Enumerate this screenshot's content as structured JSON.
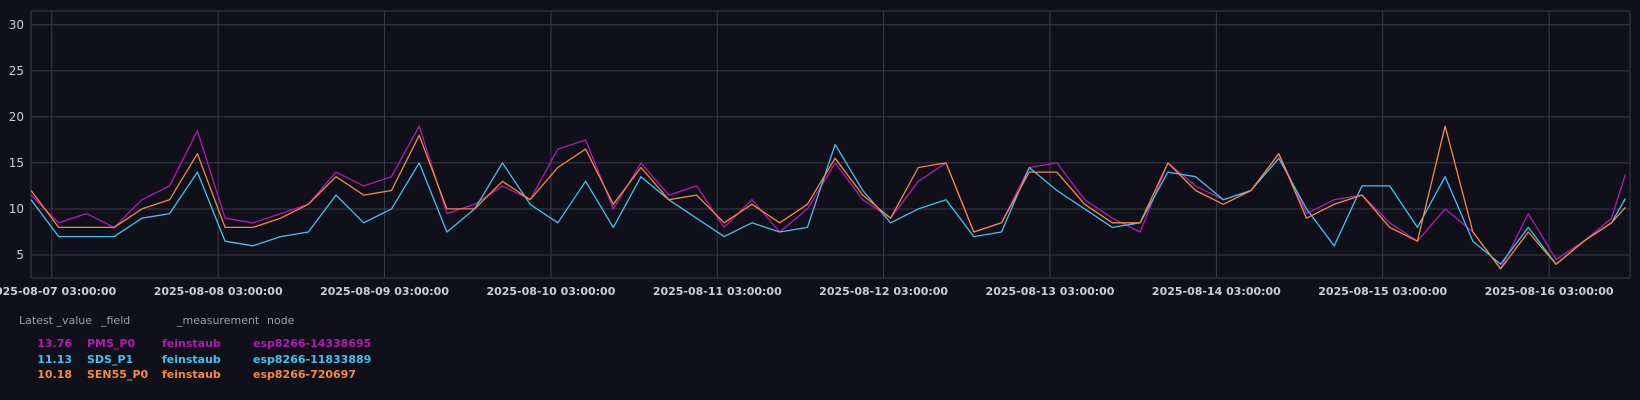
{
  "chart_data": {
    "type": "line",
    "ylim": [
      2.5,
      31.5
    ],
    "yticks": [
      5,
      10,
      15,
      20,
      25,
      30
    ],
    "grid": true,
    "x_start": "2025-08-07 00:00:00",
    "x_end": "2025-08-16 14:40:00",
    "xticks": [
      "2025-08-07 03:00:00",
      "2025-08-08 03:00:00",
      "2025-08-09 03:00:00",
      "2025-08-10 03:00:00",
      "2025-08-11 03:00:00",
      "2025-08-12 03:00:00",
      "2025-08-13 03:00:00",
      "2025-08-14 03:00:00",
      "2025-08-15 03:00:00",
      "2025-08-16 03:00:00"
    ],
    "series": [
      {
        "name": "PMS_P0",
        "color": "#b418b5",
        "x": [
          "2025-08-07 00:00:00",
          "2025-08-07 04:00:00",
          "2025-08-07 08:00:00",
          "2025-08-07 12:00:00",
          "2025-08-07 16:00:00",
          "2025-08-07 20:00:00",
          "2025-08-08 00:00:00",
          "2025-08-08 04:00:00",
          "2025-08-08 08:00:00",
          "2025-08-08 12:00:00",
          "2025-08-08 16:00:00",
          "2025-08-08 20:00:00",
          "2025-08-09 00:00:00",
          "2025-08-09 04:00:00",
          "2025-08-09 08:00:00",
          "2025-08-09 12:00:00",
          "2025-08-09 16:00:00",
          "2025-08-09 20:00:00",
          "2025-08-10 00:00:00",
          "2025-08-10 04:00:00",
          "2025-08-10 08:00:00",
          "2025-08-10 12:00:00",
          "2025-08-10 16:00:00",
          "2025-08-10 20:00:00",
          "2025-08-11 00:00:00",
          "2025-08-11 04:00:00",
          "2025-08-11 08:00:00",
          "2025-08-11 12:00:00",
          "2025-08-11 16:00:00",
          "2025-08-11 20:00:00",
          "2025-08-12 00:00:00",
          "2025-08-12 04:00:00",
          "2025-08-12 08:00:00",
          "2025-08-12 12:00:00",
          "2025-08-12 16:00:00",
          "2025-08-12 20:00:00",
          "2025-08-13 00:00:00",
          "2025-08-13 04:00:00",
          "2025-08-13 08:00:00",
          "2025-08-13 12:00:00",
          "2025-08-13 16:00:00",
          "2025-08-13 20:00:00",
          "2025-08-14 00:00:00",
          "2025-08-14 04:00:00",
          "2025-08-14 08:00:00",
          "2025-08-14 12:00:00",
          "2025-08-14 16:00:00",
          "2025-08-14 20:00:00",
          "2025-08-15 00:00:00",
          "2025-08-15 04:00:00",
          "2025-08-15 08:00:00",
          "2025-08-15 12:00:00",
          "2025-08-15 16:00:00",
          "2025-08-15 20:00:00",
          "2025-08-16 00:00:00",
          "2025-08-16 04:00:00",
          "2025-08-16 08:00:00",
          "2025-08-16 12:00:00",
          "2025-08-16 14:00:00"
        ],
        "values": [
          11.5,
          8.5,
          9.5,
          8.0,
          11.0,
          12.5,
          18.5,
          9.0,
          8.5,
          9.5,
          10.5,
          14.0,
          12.5,
          13.5,
          19.0,
          9.5,
          10.5,
          12.5,
          11.0,
          16.5,
          17.5,
          10.0,
          15.0,
          11.5,
          12.5,
          8.0,
          11.0,
          7.5,
          10.0,
          15.0,
          11.0,
          9.0,
          13.0,
          15.0,
          7.5,
          8.5,
          14.5,
          15.0,
          11.0,
          9.0,
          7.5,
          15.0,
          12.5,
          11.0,
          12.0,
          16.0,
          9.5,
          11.0,
          11.5,
          8.5,
          6.5,
          10.0,
          7.5,
          3.5,
          9.5,
          4.5,
          6.5,
          9.0,
          13.76
        ]
      },
      {
        "name": "SDS_P1",
        "color": "#3fc3f0",
        "x": [
          "2025-08-07 00:00:00",
          "2025-08-07 04:00:00",
          "2025-08-07 08:00:00",
          "2025-08-07 12:00:00",
          "2025-08-07 16:00:00",
          "2025-08-07 20:00:00",
          "2025-08-08 00:00:00",
          "2025-08-08 04:00:00",
          "2025-08-08 08:00:00",
          "2025-08-08 12:00:00",
          "2025-08-08 16:00:00",
          "2025-08-08 20:00:00",
          "2025-08-09 00:00:00",
          "2025-08-09 04:00:00",
          "2025-08-09 08:00:00",
          "2025-08-09 12:00:00",
          "2025-08-09 16:00:00",
          "2025-08-09 20:00:00",
          "2025-08-10 00:00:00",
          "2025-08-10 04:00:00",
          "2025-08-10 08:00:00",
          "2025-08-10 12:00:00",
          "2025-08-10 16:00:00",
          "2025-08-10 20:00:00",
          "2025-08-11 00:00:00",
          "2025-08-11 04:00:00",
          "2025-08-11 08:00:00",
          "2025-08-11 12:00:00",
          "2025-08-11 16:00:00",
          "2025-08-11 20:00:00",
          "2025-08-12 00:00:00",
          "2025-08-12 04:00:00",
          "2025-08-12 08:00:00",
          "2025-08-12 12:00:00",
          "2025-08-12 16:00:00",
          "2025-08-12 20:00:00",
          "2025-08-13 00:00:00",
          "2025-08-13 04:00:00",
          "2025-08-13 08:00:00",
          "2025-08-13 12:00:00",
          "2025-08-13 16:00:00",
          "2025-08-13 20:00:00",
          "2025-08-14 00:00:00",
          "2025-08-14 04:00:00",
          "2025-08-14 08:00:00",
          "2025-08-14 12:00:00",
          "2025-08-14 16:00:00",
          "2025-08-14 20:00:00",
          "2025-08-15 00:00:00",
          "2025-08-15 04:00:00",
          "2025-08-15 08:00:00",
          "2025-08-15 12:00:00",
          "2025-08-15 16:00:00",
          "2025-08-15 20:00:00",
          "2025-08-16 00:00:00",
          "2025-08-16 04:00:00",
          "2025-08-16 08:00:00",
          "2025-08-16 12:00:00",
          "2025-08-16 14:00:00"
        ],
        "values": [
          11.0,
          7.0,
          7.0,
          7.0,
          9.0,
          9.5,
          14.0,
          6.5,
          6.0,
          7.0,
          7.5,
          11.5,
          8.5,
          10.0,
          15.0,
          7.5,
          10.0,
          15.0,
          10.5,
          8.5,
          13.0,
          8.0,
          13.5,
          11.0,
          9.0,
          7.0,
          8.5,
          7.5,
          8.0,
          17.0,
          12.0,
          8.5,
          10.0,
          11.0,
          7.0,
          7.5,
          14.5,
          12.0,
          10.0,
          8.0,
          8.5,
          14.0,
          13.5,
          11.0,
          12.0,
          15.5,
          10.0,
          6.0,
          12.5,
          12.5,
          8.0,
          13.5,
          6.5,
          4.0,
          8.0,
          4.0,
          6.5,
          8.5,
          11.13
        ]
      },
      {
        "name": "SEN55_P0",
        "color": "#f68b3a",
        "x": [
          "2025-08-07 00:00:00",
          "2025-08-07 04:00:00",
          "2025-08-07 08:00:00",
          "2025-08-07 12:00:00",
          "2025-08-07 16:00:00",
          "2025-08-07 20:00:00",
          "2025-08-08 00:00:00",
          "2025-08-08 04:00:00",
          "2025-08-08 08:00:00",
          "2025-08-08 12:00:00",
          "2025-08-08 16:00:00",
          "2025-08-08 20:00:00",
          "2025-08-09 00:00:00",
          "2025-08-09 04:00:00",
          "2025-08-09 08:00:00",
          "2025-08-09 12:00:00",
          "2025-08-09 16:00:00",
          "2025-08-09 20:00:00",
          "2025-08-10 00:00:00",
          "2025-08-10 04:00:00",
          "2025-08-10 08:00:00",
          "2025-08-10 12:00:00",
          "2025-08-10 16:00:00",
          "2025-08-10 20:00:00",
          "2025-08-11 00:00:00",
          "2025-08-11 04:00:00",
          "2025-08-11 08:00:00",
          "2025-08-11 12:00:00",
          "2025-08-11 16:00:00",
          "2025-08-11 20:00:00",
          "2025-08-12 00:00:00",
          "2025-08-12 04:00:00",
          "2025-08-12 08:00:00",
          "2025-08-12 12:00:00",
          "2025-08-12 16:00:00",
          "2025-08-12 20:00:00",
          "2025-08-13 00:00:00",
          "2025-08-13 04:00:00",
          "2025-08-13 08:00:00",
          "2025-08-13 12:00:00",
          "2025-08-13 16:00:00",
          "2025-08-13 20:00:00",
          "2025-08-14 00:00:00",
          "2025-08-14 04:00:00",
          "2025-08-14 08:00:00",
          "2025-08-14 12:00:00",
          "2025-08-14 16:00:00",
          "2025-08-14 20:00:00",
          "2025-08-15 00:00:00",
          "2025-08-15 04:00:00",
          "2025-08-15 08:00:00",
          "2025-08-15 12:00:00",
          "2025-08-15 16:00:00",
          "2025-08-15 20:00:00",
          "2025-08-16 00:00:00",
          "2025-08-16 04:00:00",
          "2025-08-16 08:00:00",
          "2025-08-16 12:00:00",
          "2025-08-16 14:00:00"
        ],
        "values": [
          12.0,
          8.0,
          8.0,
          8.0,
          10.0,
          11.0,
          16.0,
          8.0,
          8.0,
          9.0,
          10.5,
          13.5,
          11.5,
          12.0,
          18.0,
          10.0,
          10.0,
          13.0,
          11.0,
          14.5,
          16.5,
          10.5,
          14.5,
          11.0,
          11.5,
          8.5,
          10.5,
          8.5,
          10.5,
          15.5,
          11.5,
          9.0,
          14.5,
          15.0,
          7.5,
          8.5,
          14.0,
          14.0,
          10.5,
          8.5,
          8.5,
          15.0,
          12.0,
          10.5,
          12.0,
          16.0,
          9.0,
          10.5,
          11.5,
          8.0,
          6.5,
          19.0,
          7.5,
          3.5,
          7.5,
          4.0,
          6.5,
          8.5,
          10.18
        ]
      }
    ]
  },
  "legend": {
    "headers": {
      "value": "Latest _value",
      "field": "_field",
      "measurement": "_measurement",
      "node": "node"
    },
    "rows": [
      {
        "value": "13.76",
        "field": "PMS_P0",
        "measurement": "feinstaub",
        "node": "esp8266-14338695",
        "color": "#b418b5"
      },
      {
        "value": "11.13",
        "field": "SDS_P1",
        "measurement": "feinstaub",
        "node": "esp8266-11833889",
        "color": "#3fc3f0"
      },
      {
        "value": "10.18",
        "field": "SEN55_P0",
        "measurement": "feinstaub",
        "node": "esp8266-720697",
        "color": "#f68b3a"
      }
    ]
  }
}
